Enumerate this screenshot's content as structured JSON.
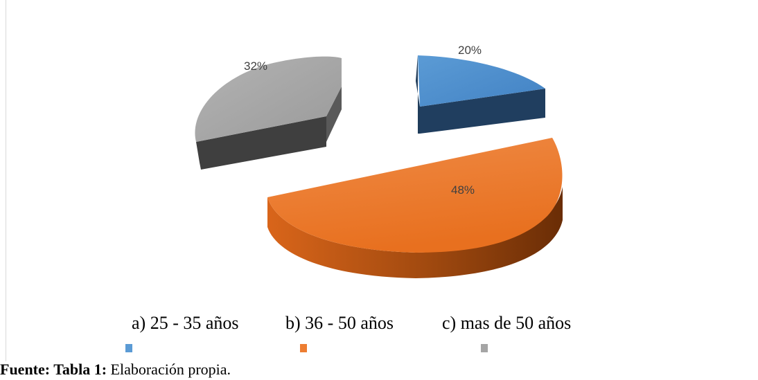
{
  "chart_data": {
    "type": "pie",
    "title": "",
    "categories": [
      "a) 25 - 35 años",
      "b) 36 - 50 años",
      "c) mas de 50 años"
    ],
    "values": [
      20,
      48,
      32
    ],
    "data_labels": [
      "20%",
      "48%",
      "32%"
    ],
    "colors": [
      "#5b9bd5",
      "#ed7d31",
      "#a5a5a5"
    ],
    "legend_position": "bottom",
    "style": "3d-exploded"
  },
  "caption": {
    "bold_prefix": "Fuente: Tabla 1:",
    "text": " Elaboración propia."
  }
}
